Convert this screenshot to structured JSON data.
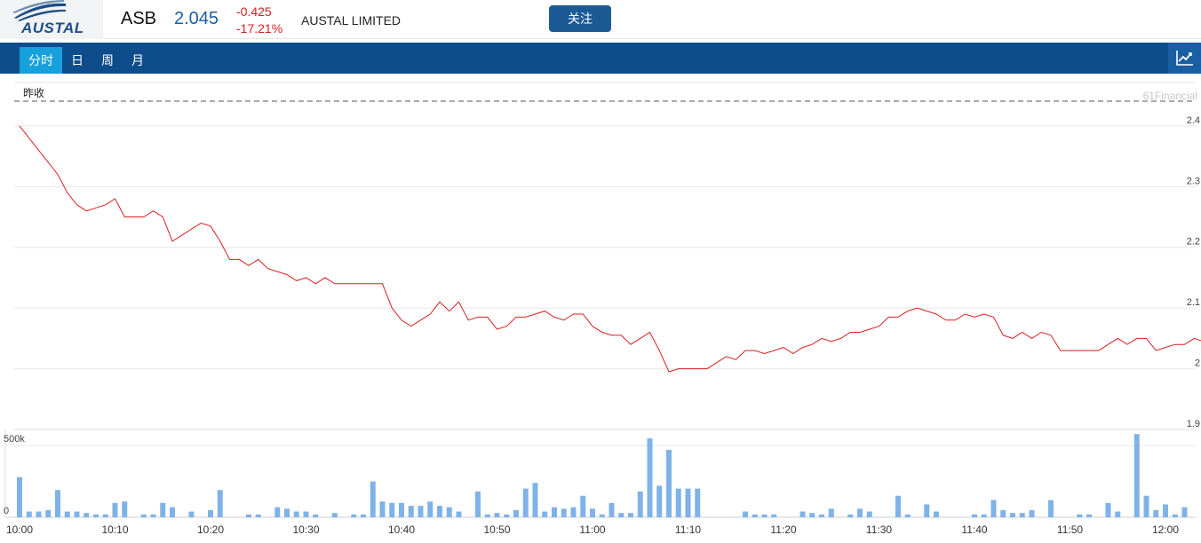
{
  "header": {
    "logo_text": "AUSTAL",
    "ticker": "ASB",
    "price": "2.045",
    "change": "-0.425",
    "change_pct": "-17.21%",
    "company": "AUSTAL LIMITED",
    "follow_label": "关注",
    "change_color": "#d81e1e",
    "price_color": "#1a5fa3"
  },
  "tabs": [
    {
      "label": "分时",
      "active": true
    },
    {
      "label": "日",
      "active": false
    },
    {
      "label": "周",
      "active": false
    },
    {
      "label": "月",
      "active": false
    }
  ],
  "chart_icon": "line-chart-icon",
  "chart_data": {
    "type": "line",
    "prev_close_label": "昨收",
    "watermark": "61Financial",
    "y_ticks": [
      "2.4",
      "2.3",
      "2.2",
      "2.1",
      "2",
      "1.9"
    ],
    "ylim": [
      1.9,
      2.47
    ],
    "x_ticks": [
      "10:00",
      "10:10",
      "10:20",
      "10:30",
      "10:40",
      "10:50",
      "11:00",
      "11:10",
      "11:20",
      "11:30",
      "11:40",
      "11:50",
      "12:00"
    ],
    "line_color": "#d81e1e",
    "price_series": [
      [
        0,
        2.4
      ],
      [
        2,
        2.36
      ],
      [
        4,
        2.32
      ],
      [
        5,
        2.29
      ],
      [
        6,
        2.27
      ],
      [
        7,
        2.26
      ],
      [
        8,
        2.265
      ],
      [
        9,
        2.27
      ],
      [
        10,
        2.28
      ],
      [
        11,
        2.25
      ],
      [
        12,
        2.25
      ],
      [
        13,
        2.25
      ],
      [
        14,
        2.26
      ],
      [
        15,
        2.25
      ],
      [
        16,
        2.21
      ],
      [
        17,
        2.22
      ],
      [
        18,
        2.23
      ],
      [
        19,
        2.24
      ],
      [
        20,
        2.235
      ],
      [
        21,
        2.21
      ],
      [
        22,
        2.18
      ],
      [
        23,
        2.18
      ],
      [
        24,
        2.17
      ],
      [
        25,
        2.18
      ],
      [
        26,
        2.165
      ],
      [
        27,
        2.16
      ],
      [
        28,
        2.155
      ],
      [
        29,
        2.145
      ],
      [
        30,
        2.15
      ],
      [
        31,
        2.14
      ],
      [
        32,
        2.15
      ],
      [
        33,
        2.14
      ],
      [
        34,
        2.14
      ],
      [
        35,
        2.14
      ],
      [
        36,
        2.14
      ],
      [
        37,
        2.14
      ],
      [
        38,
        2.14
      ],
      [
        39,
        2.1
      ],
      [
        40,
        2.08
      ],
      [
        41,
        2.07
      ],
      [
        42,
        2.08
      ],
      [
        43,
        2.09
      ],
      [
        44,
        2.11
      ],
      [
        45,
        2.095
      ],
      [
        46,
        2.11
      ],
      [
        47,
        2.08
      ],
      [
        48,
        2.085
      ],
      [
        49,
        2.085
      ],
      [
        50,
        2.065
      ],
      [
        51,
        2.07
      ],
      [
        52,
        2.085
      ],
      [
        53,
        2.085
      ],
      [
        54,
        2.09
      ],
      [
        55,
        2.095
      ],
      [
        56,
        2.085
      ],
      [
        57,
        2.08
      ],
      [
        58,
        2.09
      ],
      [
        59,
        2.09
      ],
      [
        60,
        2.07
      ],
      [
        61,
        2.06
      ],
      [
        62,
        2.055
      ],
      [
        63,
        2.055
      ],
      [
        64,
        2.04
      ],
      [
        65,
        2.05
      ],
      [
        66,
        2.06
      ],
      [
        67,
        2.03
      ],
      [
        68,
        1.995
      ],
      [
        69,
        2.0
      ],
      [
        70,
        2.0
      ],
      [
        71,
        2.0
      ],
      [
        72,
        2.0
      ],
      [
        73,
        2.01
      ],
      [
        74,
        2.02
      ],
      [
        75,
        2.015
      ],
      [
        76,
        2.03
      ],
      [
        77,
        2.03
      ],
      [
        78,
        2.025
      ],
      [
        79,
        2.03
      ],
      [
        80,
        2.035
      ],
      [
        81,
        2.025
      ],
      [
        82,
        2.035
      ],
      [
        83,
        2.04
      ],
      [
        84,
        2.05
      ],
      [
        85,
        2.045
      ],
      [
        86,
        2.05
      ],
      [
        87,
        2.06
      ],
      [
        88,
        2.06
      ],
      [
        89,
        2.065
      ],
      [
        90,
        2.07
      ],
      [
        91,
        2.085
      ],
      [
        92,
        2.085
      ],
      [
        93,
        2.095
      ],
      [
        94,
        2.1
      ],
      [
        95,
        2.095
      ],
      [
        96,
        2.09
      ],
      [
        97,
        2.08
      ],
      [
        98,
        2.08
      ],
      [
        99,
        2.09
      ],
      [
        100,
        2.085
      ],
      [
        101,
        2.09
      ],
      [
        102,
        2.085
      ],
      [
        103,
        2.055
      ],
      [
        104,
        2.05
      ],
      [
        105,
        2.06
      ],
      [
        106,
        2.05
      ],
      [
        107,
        2.06
      ],
      [
        108,
        2.055
      ],
      [
        109,
        2.03
      ],
      [
        110,
        2.03
      ],
      [
        111,
        2.03
      ],
      [
        112,
        2.03
      ],
      [
        113,
        2.03
      ],
      [
        114,
        2.04
      ],
      [
        115,
        2.05
      ],
      [
        116,
        2.04
      ],
      [
        117,
        2.05
      ],
      [
        118,
        2.05
      ],
      [
        119,
        2.03
      ],
      [
        120,
        2.035
      ],
      [
        121,
        2.04
      ],
      [
        122,
        2.04
      ],
      [
        123,
        2.05
      ],
      [
        124,
        2.045
      ]
    ],
    "volume_label_top": "500k",
    "volume_label_bottom": "0",
    "volume_max": 600000,
    "bar_color": "#7fb3e8",
    "volume_series": [
      [
        0,
        280000
      ],
      [
        1,
        40000
      ],
      [
        2,
        40000
      ],
      [
        3,
        50000
      ],
      [
        4,
        190000
      ],
      [
        5,
        40000
      ],
      [
        6,
        40000
      ],
      [
        7,
        30000
      ],
      [
        8,
        20000
      ],
      [
        9,
        20000
      ],
      [
        10,
        100000
      ],
      [
        11,
        110000
      ],
      [
        13,
        20000
      ],
      [
        14,
        20000
      ],
      [
        15,
        100000
      ],
      [
        16,
        70000
      ],
      [
        18,
        40000
      ],
      [
        20,
        50000
      ],
      [
        21,
        190000
      ],
      [
        24,
        20000
      ],
      [
        25,
        20000
      ],
      [
        27,
        70000
      ],
      [
        28,
        60000
      ],
      [
        29,
        40000
      ],
      [
        30,
        40000
      ],
      [
        31,
        20000
      ],
      [
        33,
        30000
      ],
      [
        35,
        20000
      ],
      [
        36,
        20000
      ],
      [
        37,
        250000
      ],
      [
        38,
        110000
      ],
      [
        39,
        100000
      ],
      [
        40,
        100000
      ],
      [
        41,
        80000
      ],
      [
        42,
        80000
      ],
      [
        43,
        110000
      ],
      [
        44,
        80000
      ],
      [
        45,
        70000
      ],
      [
        46,
        40000
      ],
      [
        48,
        180000
      ],
      [
        49,
        20000
      ],
      [
        50,
        30000
      ],
      [
        51,
        20000
      ],
      [
        52,
        50000
      ],
      [
        53,
        200000
      ],
      [
        54,
        240000
      ],
      [
        55,
        40000
      ],
      [
        56,
        70000
      ],
      [
        57,
        60000
      ],
      [
        58,
        70000
      ],
      [
        59,
        150000
      ],
      [
        60,
        60000
      ],
      [
        61,
        20000
      ],
      [
        62,
        100000
      ],
      [
        63,
        30000
      ],
      [
        64,
        30000
      ],
      [
        65,
        180000
      ],
      [
        66,
        550000
      ],
      [
        67,
        220000
      ],
      [
        68,
        470000
      ],
      [
        69,
        200000
      ],
      [
        70,
        200000
      ],
      [
        71,
        200000
      ],
      [
        76,
        40000
      ],
      [
        77,
        20000
      ],
      [
        78,
        20000
      ],
      [
        79,
        20000
      ],
      [
        82,
        40000
      ],
      [
        83,
        30000
      ],
      [
        84,
        20000
      ],
      [
        85,
        60000
      ],
      [
        87,
        20000
      ],
      [
        88,
        60000
      ],
      [
        89,
        40000
      ],
      [
        92,
        150000
      ],
      [
        93,
        20000
      ],
      [
        95,
        90000
      ],
      [
        96,
        40000
      ],
      [
        100,
        20000
      ],
      [
        101,
        20000
      ],
      [
        102,
        120000
      ],
      [
        103,
        50000
      ],
      [
        104,
        30000
      ],
      [
        105,
        30000
      ],
      [
        106,
        50000
      ],
      [
        108,
        120000
      ],
      [
        111,
        20000
      ],
      [
        112,
        20000
      ],
      [
        114,
        100000
      ],
      [
        115,
        40000
      ],
      [
        117,
        580000
      ],
      [
        118,
        150000
      ],
      [
        119,
        50000
      ],
      [
        120,
        90000
      ],
      [
        121,
        20000
      ],
      [
        122,
        70000
      ]
    ]
  }
}
